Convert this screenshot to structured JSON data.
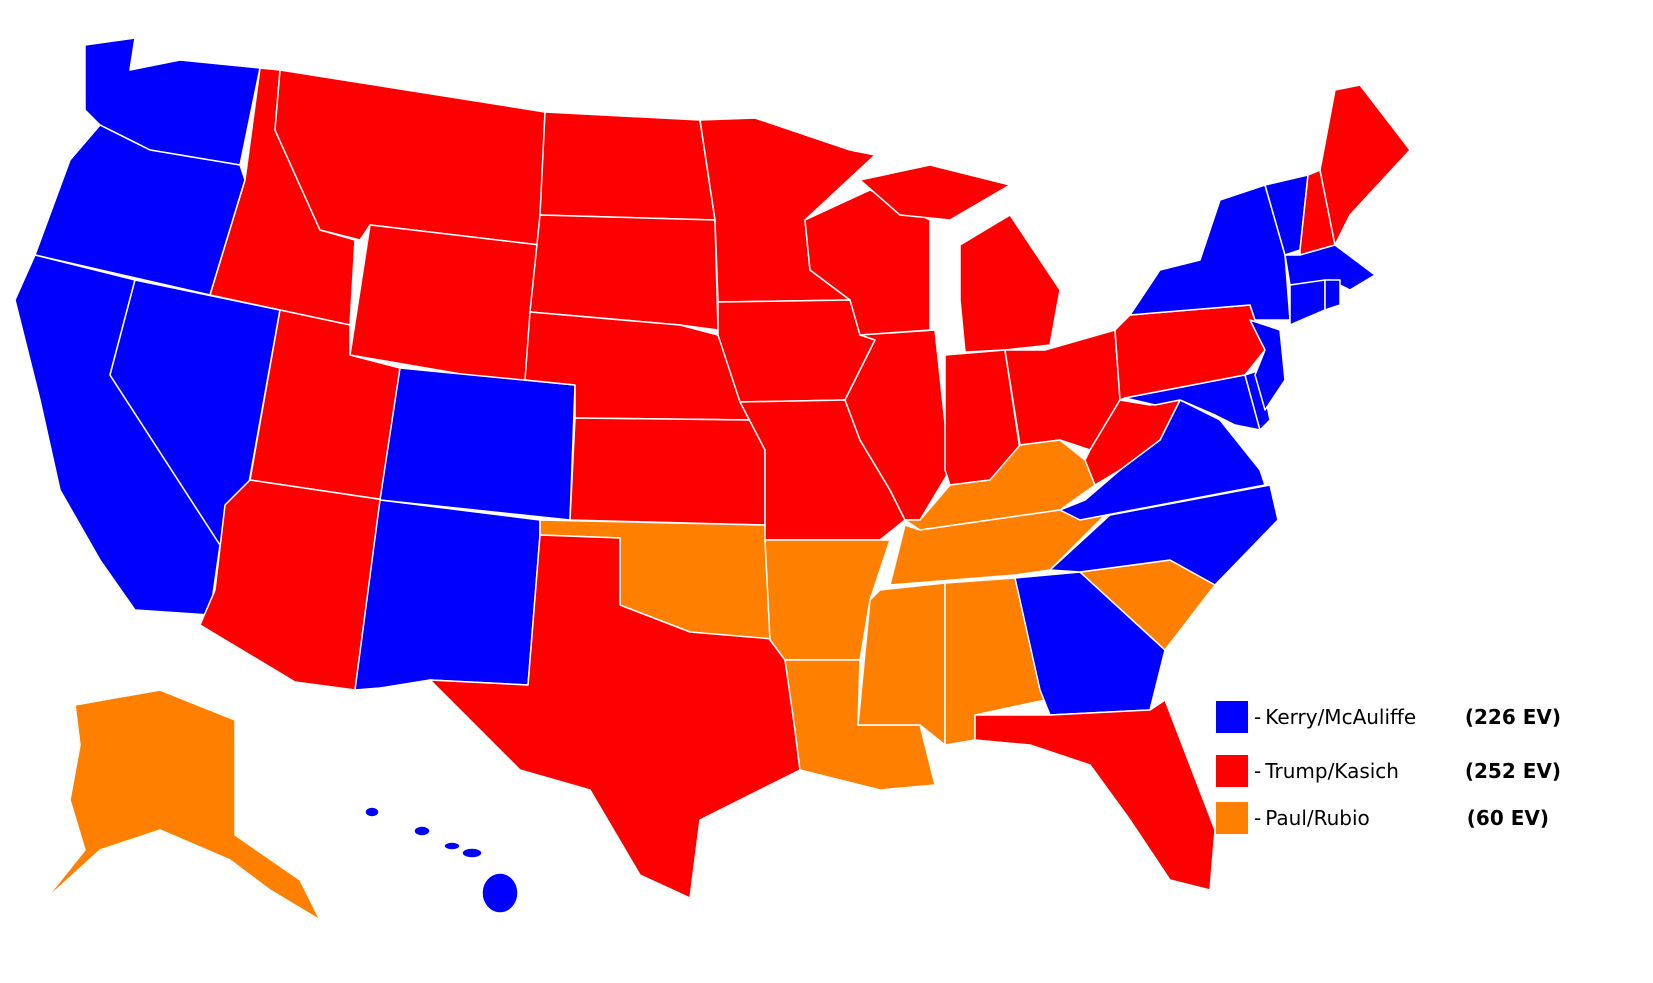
{
  "parties": {
    "kerry": {
      "color": "#0000ff"
    },
    "trump": {
      "color": "#ff0000"
    },
    "paul": {
      "color": "#ff8000"
    }
  },
  "legend": [
    {
      "party": "kerry",
      "dash": "-",
      "label": "Kerry/McAuliffe",
      "ev": "(226 EV)"
    },
    {
      "party": "trump",
      "dash": "-",
      "label": "Trump/Kasich",
      "ev": "(252 EV)"
    },
    {
      "party": "paul",
      "dash": "-",
      "label": "Paul/Rubio",
      "ev": "(60 EV)"
    }
  ],
  "state_results": {
    "WA": "kerry",
    "OR": "kerry",
    "CA": "kerry",
    "NV": "kerry",
    "CO": "kerry",
    "NM": "kerry",
    "NY": "kerry",
    "VT": "kerry",
    "MA": "kerry",
    "CT": "kerry",
    "RI": "kerry",
    "NJ": "kerry",
    "DE": "kerry",
    "MD": "kerry",
    "VA": "kerry",
    "NC": "kerry",
    "GA": "kerry",
    "HI": "kerry",
    "ID": "trump",
    "MT": "trump",
    "WY": "trump",
    "UT": "trump",
    "AZ": "trump",
    "ND": "trump",
    "SD": "trump",
    "NE": "trump",
    "KS": "trump",
    "TX": "trump",
    "MN": "trump",
    "IA": "trump",
    "MO": "trump",
    "WI": "trump",
    "IL": "trump",
    "MI": "trump",
    "IN": "trump",
    "OH": "trump",
    "WV": "trump",
    "PA": "trump",
    "NH": "trump",
    "ME": "trump",
    "FL": "trump",
    "AK": "paul",
    "OK": "paul",
    "AR": "paul",
    "LA": "paul",
    "MS": "paul",
    "AL": "paul",
    "TN": "paul",
    "KY": "paul",
    "SC": "paul"
  }
}
